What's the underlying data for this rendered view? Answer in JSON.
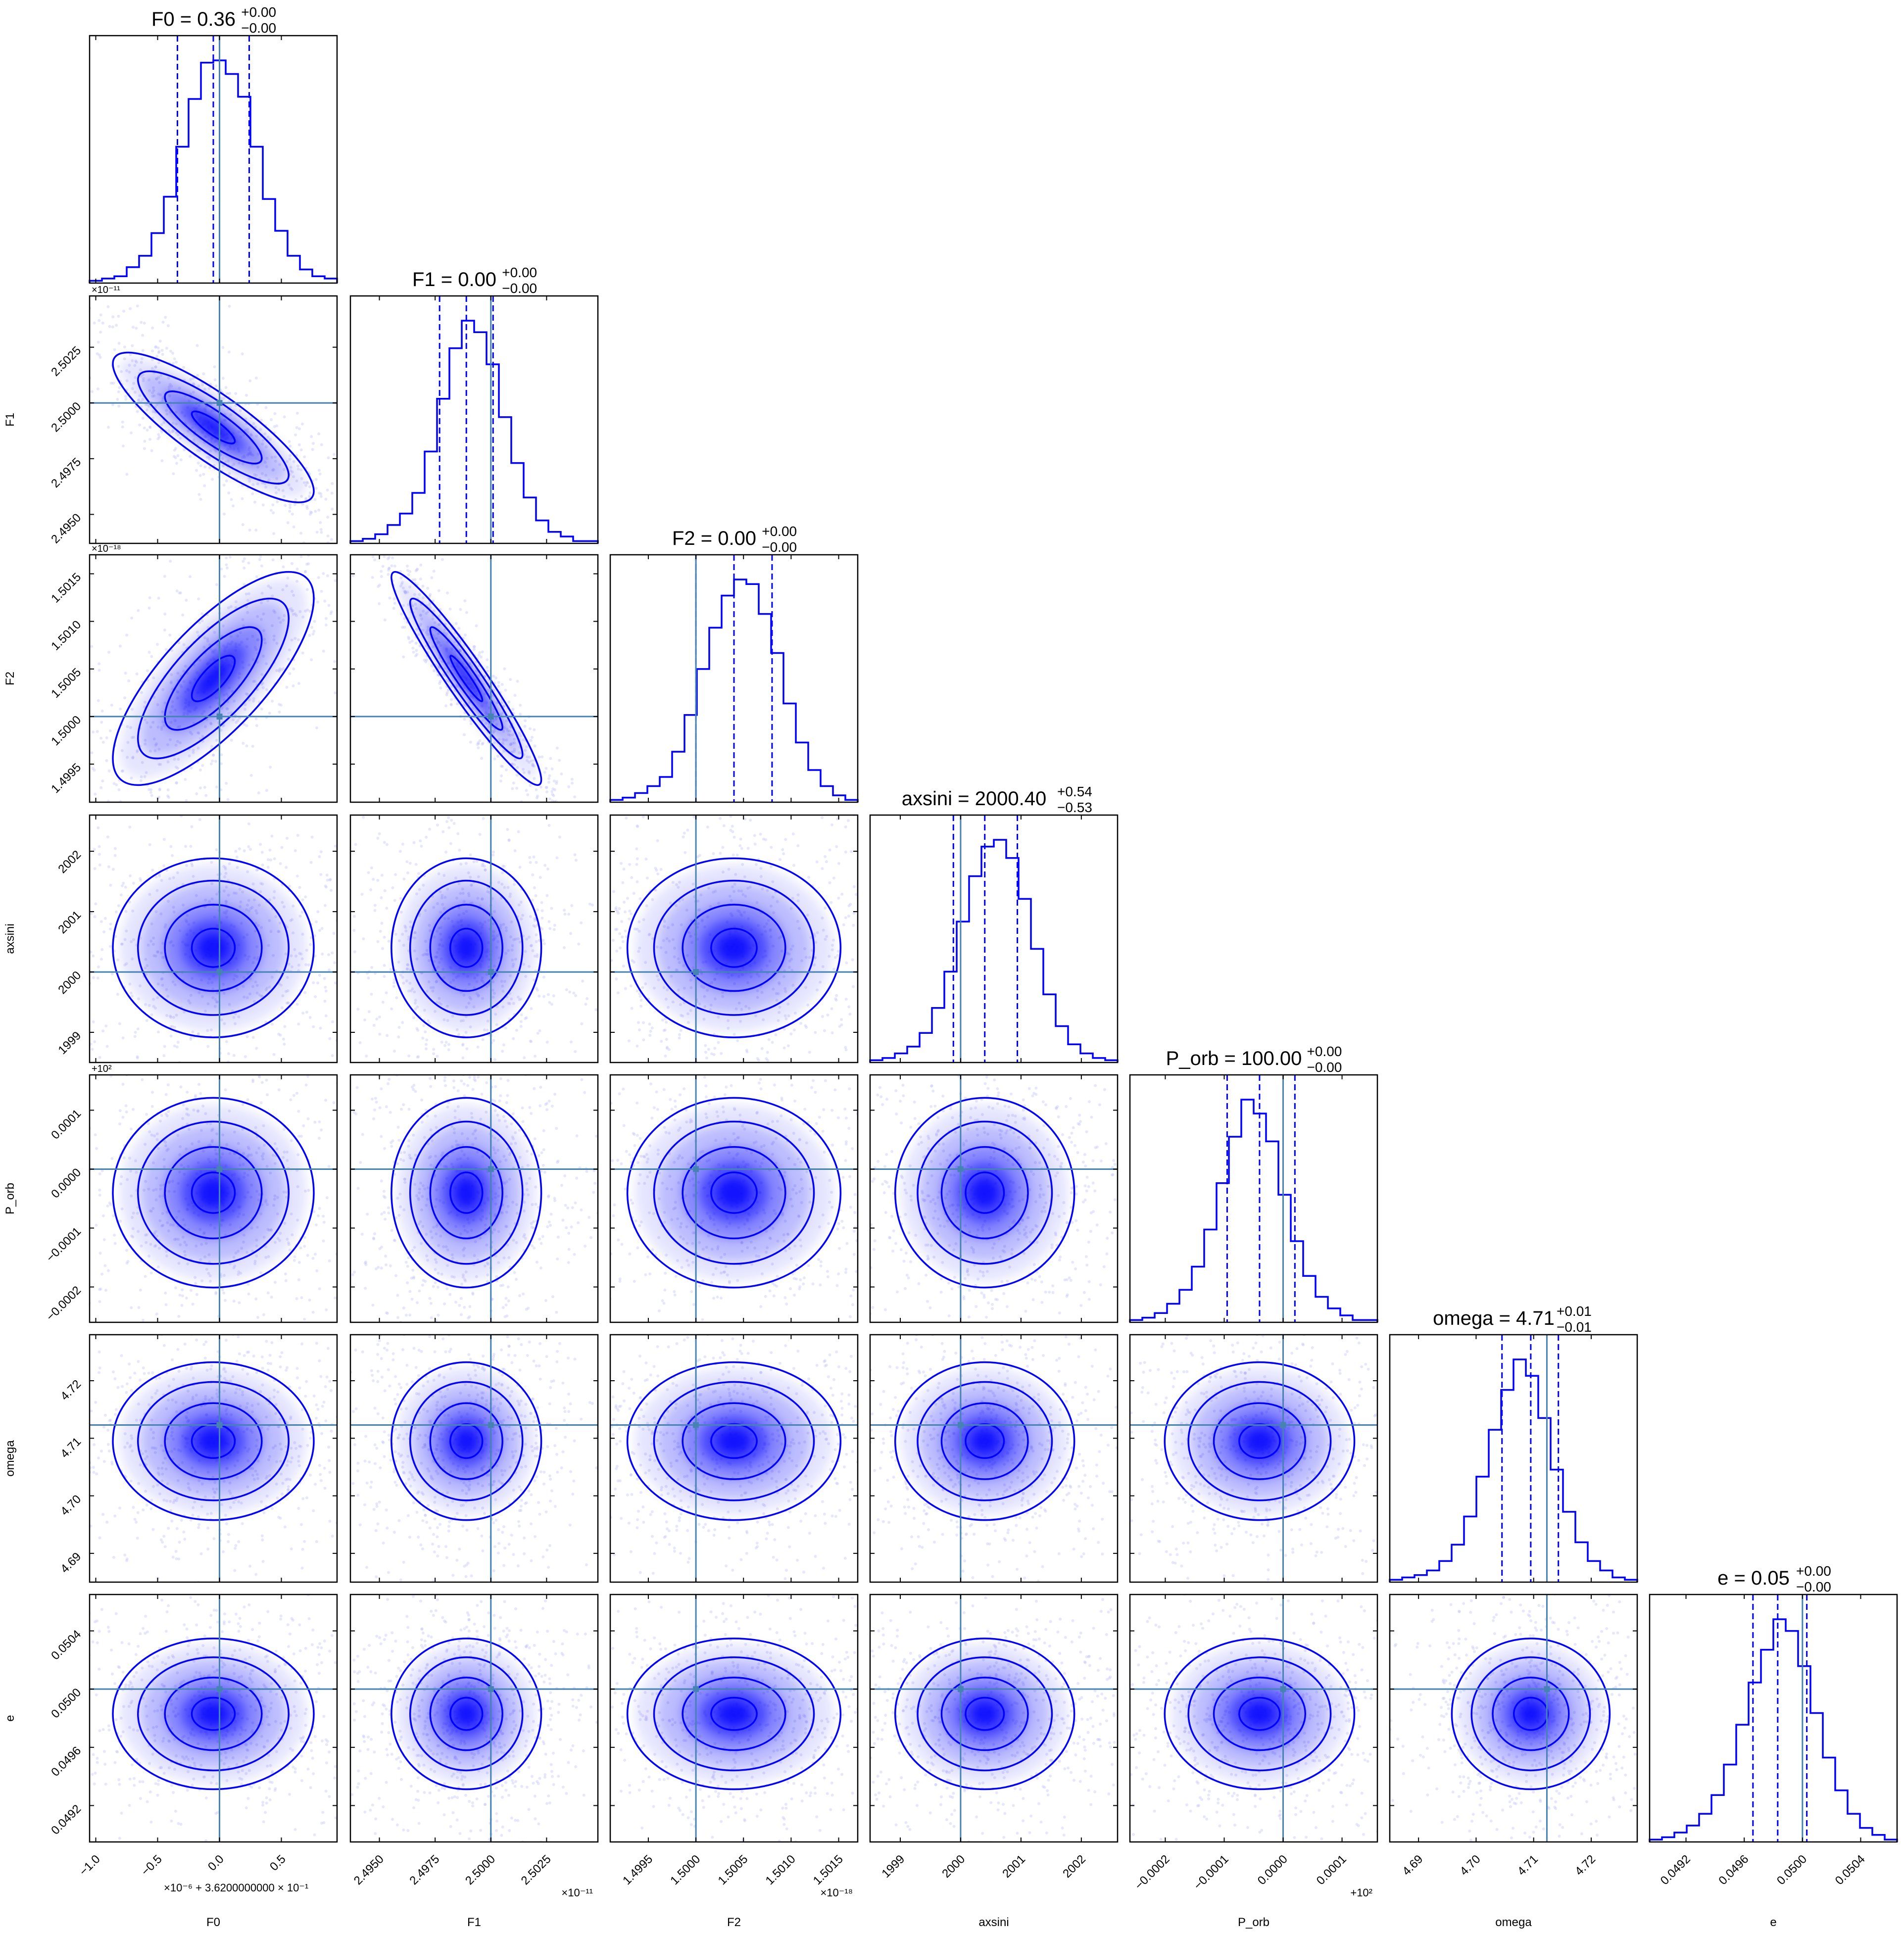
{
  "chart_data": {
    "type": "corner",
    "parameters": [
      {
        "name": "F0",
        "title": "F0 = 0.36",
        "title_sup": "+0.00",
        "title_sub": "−0.00",
        "ticks": [
          -1.0,
          -0.5,
          0.0,
          0.5
        ],
        "tick_labels": [
          "−1.0",
          "−0.5",
          "0.0",
          "0.5"
        ],
        "range": [
          -1.05,
          0.95
        ],
        "truth": 0.0,
        "quantiles": [
          -0.34,
          -0.05,
          0.24
        ],
        "hist": [
          1,
          2,
          3,
          7,
          12,
          22,
          38,
          60,
          81,
          97,
          98,
          92,
          82,
          60,
          37,
          23,
          12,
          6,
          3,
          2
        ],
        "offset": "×10⁻⁶ + 3.6200000000 × 10⁻¹"
      },
      {
        "name": "F1",
        "title": "F1 = 0.00",
        "title_sup": "+0.00",
        "title_sub": "−0.00",
        "ticks": [
          2.495,
          2.4975,
          2.5,
          2.5025
        ],
        "tick_labels": [
          "2.4950",
          "2.4975",
          "2.5000",
          "2.5025"
        ],
        "range": [
          2.4937,
          2.5048
        ],
        "truth": 2.5,
        "quantiles": [
          2.4977,
          2.4989,
          2.5001
        ],
        "hist": [
          1,
          2,
          4,
          8,
          13,
          22,
          40,
          63,
          85,
          97,
          92,
          78,
          55,
          35,
          20,
          10,
          5,
          3,
          1,
          1
        ],
        "exponent": "×10⁻¹¹"
      },
      {
        "name": "F2",
        "title": "F2 = 0.00",
        "title_sup": "+0.00",
        "title_sub": "−0.00",
        "ticks": [
          1.4995,
          1.5,
          1.5005,
          1.501,
          1.5015
        ],
        "tick_labels": [
          "1.4995",
          "1.5000",
          "1.5005",
          "1.5010",
          "1.5015"
        ],
        "range": [
          1.4991,
          1.5017
        ],
        "truth": 1.5,
        "quantiles": [
          1.5,
          1.5004,
          1.5008
        ],
        "hist": [
          1,
          2,
          4,
          7,
          11,
          22,
          38,
          58,
          76,
          90,
          97,
          95,
          82,
          65,
          43,
          26,
          14,
          7,
          3,
          1
        ],
        "exponent": "×10⁻¹⁸"
      },
      {
        "name": "axsini",
        "title": "axsini = 2000.40",
        "title_sup": "+0.54",
        "title_sub": "−0.53",
        "ticks": [
          1999,
          2000,
          2001,
          2002
        ],
        "tick_labels": [
          "1999",
          "2000",
          "2001",
          "2002"
        ],
        "range": [
          1998.5,
          2002.6
        ],
        "truth": 2000.0,
        "quantiles": [
          1999.88,
          2000.4,
          2000.94
        ],
        "hist": [
          1,
          2,
          4,
          7,
          13,
          24,
          40,
          62,
          82,
          95,
          98,
          90,
          72,
          50,
          30,
          16,
          8,
          4,
          2,
          1
        ]
      },
      {
        "name": "P_orb",
        "title": "P_orb = 100.00",
        "title_sup": "+0.00",
        "title_sub": "−0.00",
        "ticks": [
          -0.0002,
          -0.0001,
          0.0,
          0.0001
        ],
        "tick_labels": [
          "−0.0002",
          "−0.0001",
          "0.0000",
          "0.0001"
        ],
        "range": [
          -0.00026,
          0.00016
        ],
        "truth": 0.0,
        "quantiles": [
          -9.5e-05,
          -4e-05,
          2e-05
        ],
        "hist": [
          1,
          2,
          4,
          8,
          14,
          24,
          40,
          60,
          80,
          96,
          90,
          78,
          55,
          35,
          20,
          11,
          6,
          3,
          1,
          1
        ],
        "exponent": "+10²"
      },
      {
        "name": "omega",
        "title": "omega = 4.71",
        "title_sup": "+0.01",
        "title_sub": "−0.01",
        "ticks": [
          4.69,
          4.7,
          4.71,
          4.72
        ],
        "tick_labels": [
          "4.69",
          "4.70",
          "4.71",
          "4.72"
        ],
        "range": [
          4.685,
          4.728
        ],
        "truth": 4.7123,
        "quantiles": [
          4.7045,
          4.7095,
          4.7143
        ],
        "hist": [
          1,
          2,
          3,
          5,
          9,
          16,
          28,
          45,
          65,
          82,
          95,
          88,
          70,
          48,
          30,
          17,
          9,
          5,
          2,
          1
        ]
      },
      {
        "name": "e",
        "title": "e = 0.05",
        "title_sup": "+0.00",
        "title_sub": "−0.00",
        "ticks": [
          0.0492,
          0.0496,
          0.05,
          0.0504
        ],
        "tick_labels": [
          "0.0492",
          "0.0496",
          "0.0500",
          "0.0504"
        ],
        "range": [
          0.04895,
          0.05065
        ],
        "truth": 0.05,
        "quantiles": [
          0.04966,
          0.04983,
          0.05003
        ],
        "hist": [
          1,
          2,
          4,
          7,
          12,
          20,
          33,
          50,
          68,
          82,
          95,
          90,
          75,
          55,
          36,
          22,
          12,
          6,
          3,
          1
        ]
      }
    ],
    "correlations": {
      "1_0": -0.85,
      "2_0": 0.75,
      "2_1": -0.95
    },
    "truth_color": "#4682b4",
    "contour_color": "#0000ff"
  }
}
